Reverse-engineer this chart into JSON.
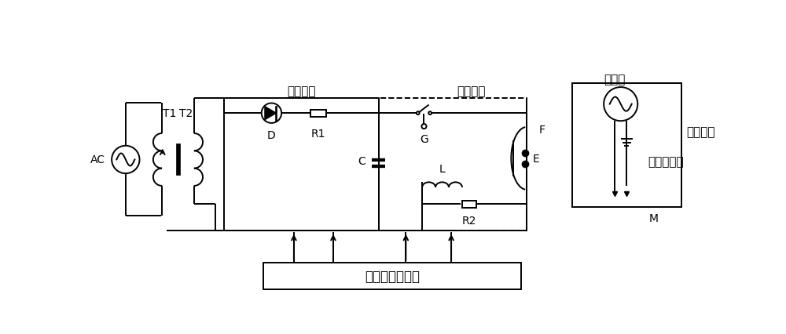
{
  "bg_color": "#ffffff",
  "line_color": "#000000",
  "label_charging": "充电回路",
  "label_discharging": "放电回路",
  "label_oscillator": "振荡器",
  "label_ac": "AC",
  "label_t1": "T1",
  "label_t2": "T2",
  "label_d": "D",
  "label_r1": "R1",
  "label_c": "C",
  "label_g": "G",
  "label_l": "L",
  "label_r2": "R2",
  "label_f": "F",
  "label_e": "E",
  "label_m": "M",
  "label_control": "充放电控制系统",
  "label_pressure": "压力传感器",
  "label_liquid": "液体表面"
}
